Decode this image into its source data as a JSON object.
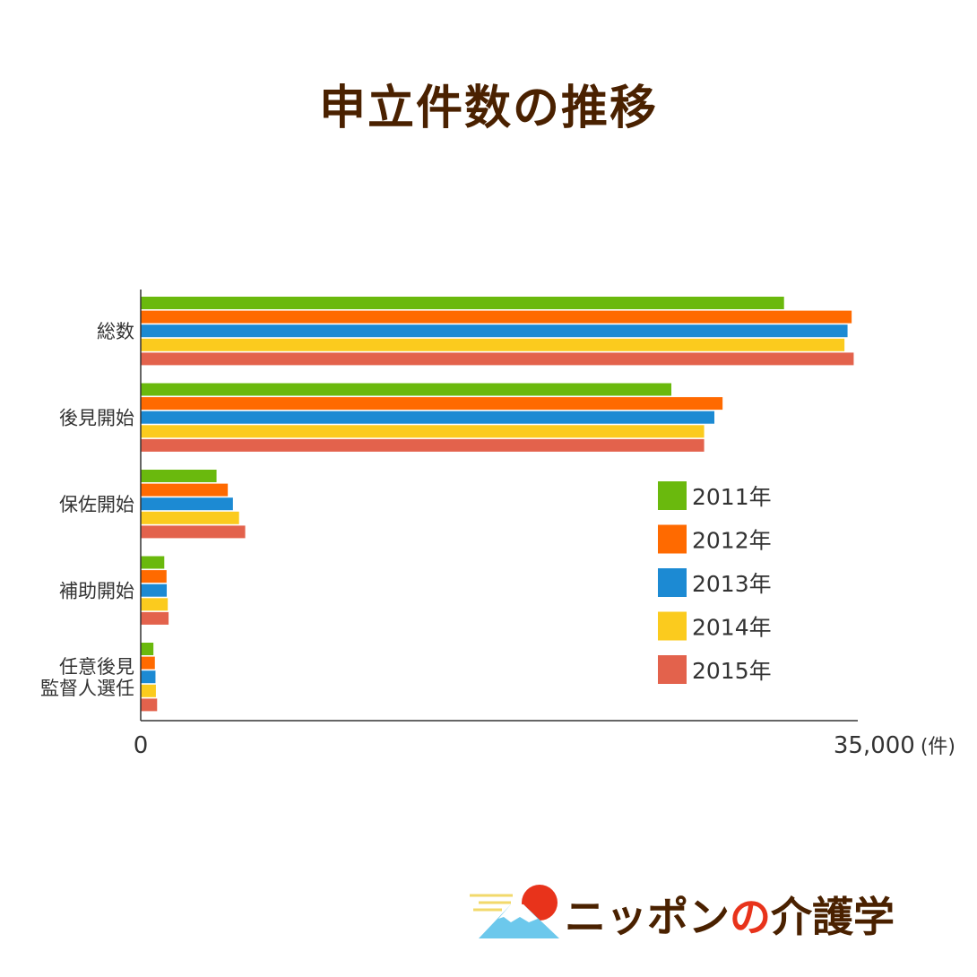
{
  "chart_data": {
    "type": "bar",
    "orientation": "horizontal",
    "title": "申立件数の推移",
    "categories": [
      "総数",
      "後見開始",
      "保佐開始",
      "補助開始",
      "任意後見\n監督人選任"
    ],
    "series": [
      {
        "name": "2011年",
        "color": "#6ab90d",
        "values": [
          31400,
          25900,
          3700,
          1150,
          620
        ]
      },
      {
        "name": "2012年",
        "color": "#ff6a00",
        "values": [
          34700,
          28400,
          4250,
          1260,
          690
        ]
      },
      {
        "name": "2013年",
        "color": "#1c8ad3",
        "values": [
          34500,
          28000,
          4500,
          1270,
          720
        ]
      },
      {
        "name": "2014年",
        "color": "#fbcb1e",
        "values": [
          34350,
          27500,
          4800,
          1320,
          740
        ]
      },
      {
        "name": "2015年",
        "color": "#e3624c",
        "values": [
          34800,
          27500,
          5100,
          1360,
          800
        ]
      }
    ],
    "xlim": [
      0,
      35000
    ],
    "x_tick_min": "0",
    "x_tick_max": "35,000",
    "x_unit": "(件)",
    "legend_position": "right",
    "grid": false
  },
  "logo": {
    "part1": "ニッポン",
    "part2": "の",
    "part3": "介護学"
  }
}
